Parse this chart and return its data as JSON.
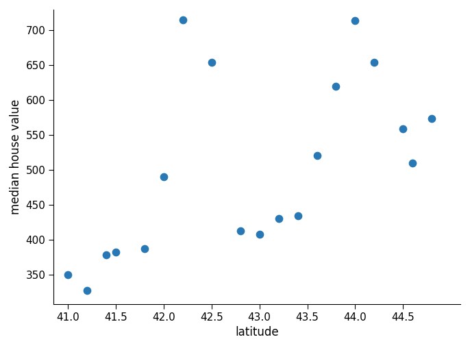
{
  "latitudes": [
    41.0,
    41.2,
    41.4,
    41.5,
    41.8,
    42.0,
    42.2,
    42.5,
    42.8,
    43.0,
    43.2,
    43.4,
    43.6,
    43.8,
    44.0,
    44.2,
    44.5,
    44.6,
    44.8
  ],
  "values": [
    350,
    327,
    378,
    382,
    387,
    490,
    715,
    654,
    413,
    408,
    430,
    434,
    521,
    620,
    714,
    654,
    559,
    510,
    574
  ],
  "dot_color": "#2878b5",
  "dot_size": 55,
  "xlabel": "latitude",
  "ylabel": "median house value",
  "xlim": [
    40.85,
    45.1
  ],
  "ylim": [
    308,
    730
  ],
  "xticks": [
    41.0,
    41.5,
    42.0,
    42.5,
    43.0,
    43.5,
    44.0,
    44.5
  ],
  "yticks": [
    350,
    400,
    450,
    500,
    550,
    600,
    650,
    700
  ],
  "background_color": "#ffffff",
  "label_fontsize": 12,
  "tick_fontsize": 11
}
